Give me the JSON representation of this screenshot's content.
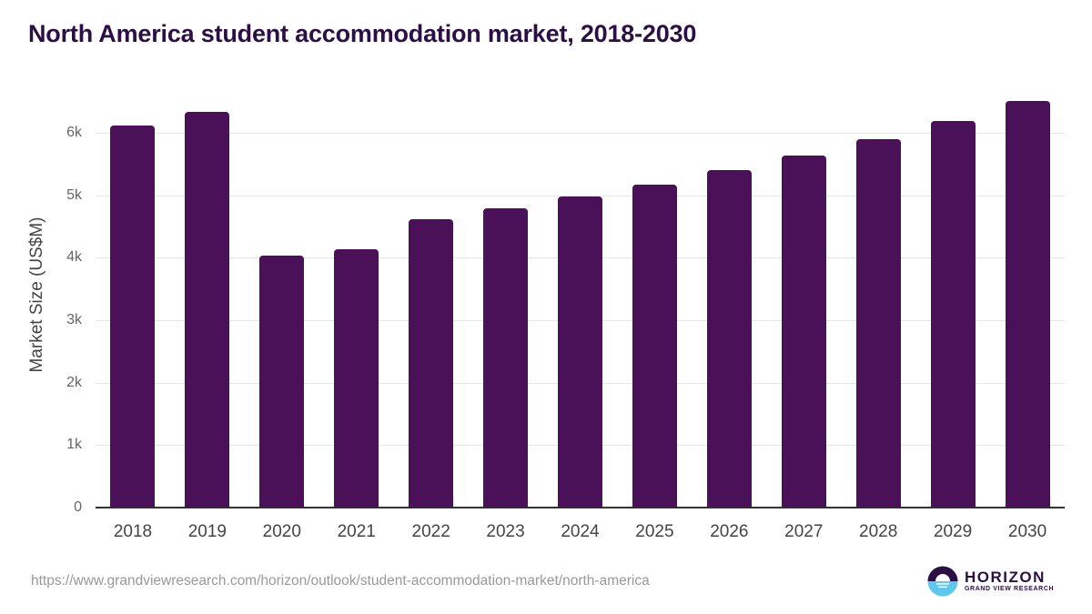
{
  "title": "North America student accommodation market, 2018-2030",
  "footer": {
    "url": "https://www.grandviewresearch.com/horizon/outlook/student-accommodation-market/north-america",
    "logo_name": "HORIZON",
    "logo_sub": "GRAND VIEW RESEARCH"
  },
  "colors": {
    "bar": "#4a1158",
    "title": "#2b0f45",
    "logo_top": "#2b0f45",
    "logo_bottom": "#5cc8ef"
  },
  "chart_data": {
    "type": "bar",
    "title": "North America student accommodation market, 2018-2030",
    "xlabel": "",
    "ylabel": "Market Size (US$M)",
    "ylim": [
      0,
      6820
    ],
    "yticks": [
      0,
      1000,
      2000,
      3000,
      4000,
      5000,
      6000
    ],
    "ytick_labels": [
      "0",
      "1k",
      "2k",
      "3k",
      "4k",
      "5k",
      "6k"
    ],
    "grid": true,
    "legend": "none",
    "categories": [
      "2018",
      "2019",
      "2020",
      "2021",
      "2022",
      "2023",
      "2024",
      "2025",
      "2026",
      "2027",
      "2028",
      "2029",
      "2030"
    ],
    "values": [
      6110,
      6340,
      4030,
      4130,
      4620,
      4790,
      4980,
      5170,
      5400,
      5640,
      5900,
      6190,
      6510
    ]
  }
}
